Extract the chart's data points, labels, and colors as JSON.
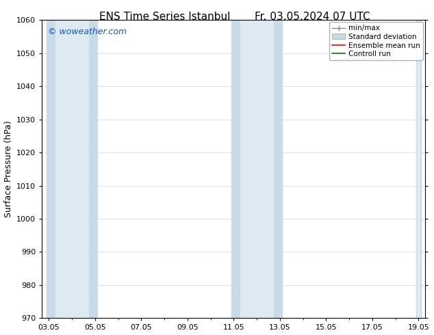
{
  "title": "ENS Time Series Istanbul",
  "title2": "Fr. 03.05.2024 07 UTC",
  "ylabel": "Surface Pressure (hPa)",
  "ylim": [
    970,
    1060
  ],
  "yticks": [
    970,
    980,
    990,
    1000,
    1010,
    1020,
    1030,
    1040,
    1050,
    1060
  ],
  "xtick_labels": [
    "03.05",
    "05.05",
    "07.05",
    "09.05",
    "11.05",
    "13.05",
    "15.05",
    "17.05",
    "19.05"
  ],
  "xtick_positions": [
    0,
    2,
    4,
    6,
    8,
    10,
    12,
    14,
    16
  ],
  "xlim": [
    0,
    16
  ],
  "shaded_bands": [
    {
      "x_start": -0.1,
      "x_end": 2.1
    },
    {
      "x_start": 7.9,
      "x_end": 10.1
    },
    {
      "x_start": 15.9,
      "x_end": 16.1
    }
  ],
  "band_outer_color": "#c8dce8",
  "band_inner_color": "#ddeaf2",
  "watermark": "© woweather.com",
  "watermark_color": "#1155cc",
  "background_color": "#ffffff",
  "legend_entries": [
    {
      "label": "min/max",
      "color": "#aaaaaa"
    },
    {
      "label": "Standard deviation",
      "color": "#c8dce8"
    },
    {
      "label": "Ensemble mean run",
      "color": "#ff0000"
    },
    {
      "label": "Controll run",
      "color": "#007700"
    }
  ],
  "grid_color": "#dddddd",
  "title_fontsize": 11,
  "label_fontsize": 9,
  "tick_fontsize": 8,
  "legend_fontsize": 7.5
}
